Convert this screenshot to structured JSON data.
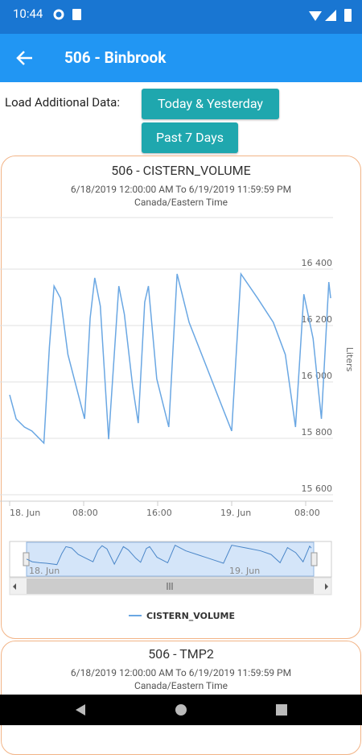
{
  "status_bar": {
    "time": "10:44"
  },
  "app_bar": {
    "title": "506 - Binbrook"
  },
  "load_label": "Load Additional Data:",
  "buttons": [
    "Today & Yesterday",
    "Past 7 Days"
  ],
  "cards": [
    {
      "title": "506 - CISTERN_VOLUME",
      "subtitle": "6/18/2019 12:00:00 AM To 6/19/2019 11:59:59 PM",
      "timezone": "Canada/Eastern Time",
      "chart": {
        "type": "line",
        "x": [
          0,
          0.7,
          1.6,
          2.4,
          3.7,
          4.3,
          4.8,
          5.5,
          6.3,
          7.2,
          8.1,
          8.7,
          9.2,
          9.8,
          10.7,
          11.8,
          12.4,
          13.3,
          13.9,
          14.6,
          15.0,
          15.9,
          17.2,
          18.1,
          19.4,
          21.1,
          22.8,
          24.0,
          25.0,
          26.8,
          28.5,
          29.8,
          30.9,
          31.8,
          32.8,
          33.7,
          34.5,
          34.7
        ],
        "series": [
          {
            "name": "CISTERN_VOLUME",
            "color": "#6aa7e3",
            "values": [
              15954,
              15869,
              15840,
              15826,
              15783,
              16126,
              16340,
              16297,
              16097,
              15983,
              15869,
              16226,
              16369,
              16269,
              15797,
              16340,
              16240,
              15983,
              15854,
              16283,
              16340,
              16011,
              15840,
              16383,
              16211,
              16069,
              15926,
              15826,
              16383,
              16297,
              16211,
              16097,
              15840,
              16311,
              16154,
              15869,
              16354,
              16297
            ]
          }
        ],
        "xlim": [
          0,
          35
        ],
        "xticks": [
          {
            "value": 0,
            "label": "18. Jun"
          },
          {
            "value": 8,
            "label": "08:00"
          },
          {
            "value": 16,
            "label": "16:00"
          },
          {
            "value": 24,
            "label": "19. Jun"
          },
          {
            "value": 32,
            "label": "08:00"
          }
        ],
        "ylim": [
          15600,
          16600
        ],
        "yticks": [
          {
            "value": 15600,
            "label": "15 600"
          },
          {
            "value": 15800,
            "label": "15 800"
          },
          {
            "value": 16000,
            "label": "16 000"
          },
          {
            "value": 16200,
            "label": "16 200"
          },
          {
            "value": 16400,
            "label": "16 400"
          }
        ],
        "y_label": "Liters",
        "grid": true,
        "navigator_labels": [
          "18. Jun",
          "19. Jun"
        ]
      }
    },
    {
      "title": "506 - TMP2",
      "subtitle": "6/18/2019 12:00:00 AM To 6/19/2019 11:59:59 PM",
      "timezone": "Canada/Eastern Time"
    }
  ]
}
